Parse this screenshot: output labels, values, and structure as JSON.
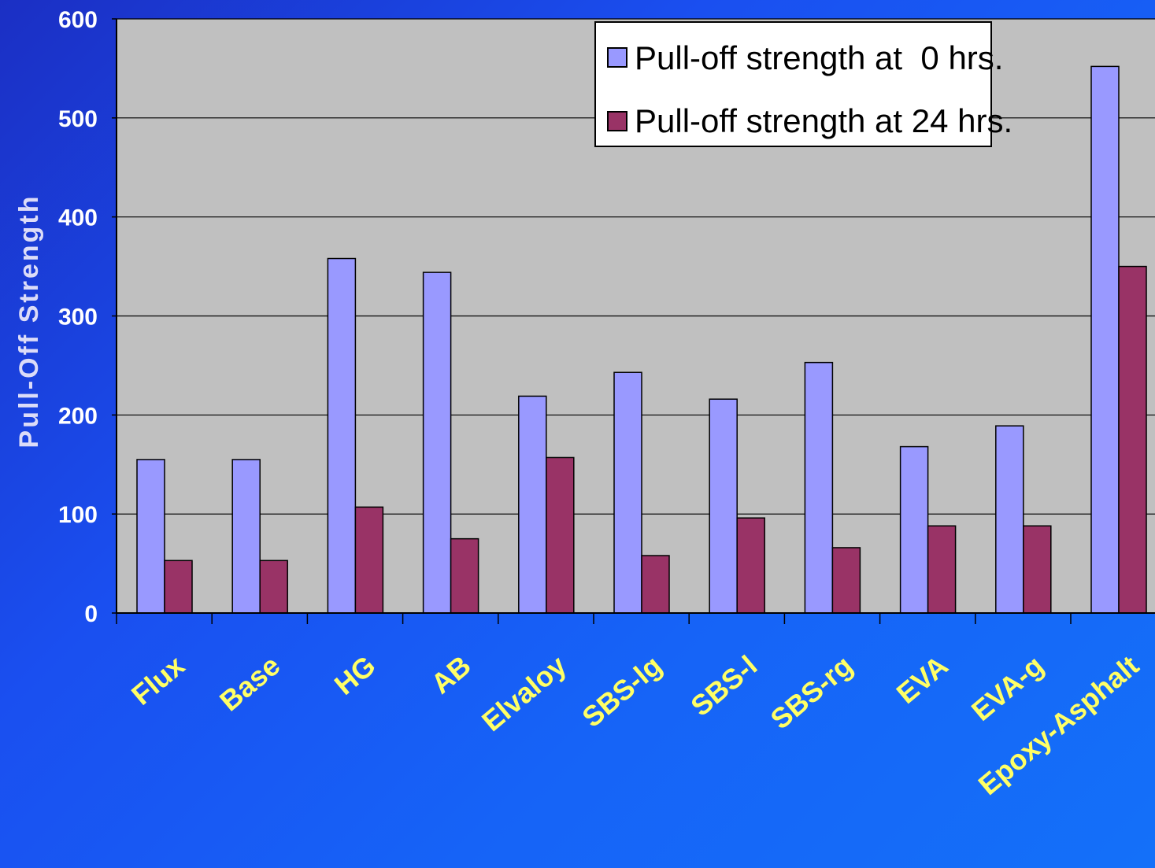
{
  "chart_data": {
    "type": "bar",
    "ylabel": "Pull-Off Strength",
    "ylim": [
      0,
      600
    ],
    "yticks": [
      0,
      100,
      200,
      300,
      400,
      500,
      600
    ],
    "categories": [
      "Flux",
      "Base",
      "HG",
      "AB",
      "Elvaloy",
      "SBS-lg",
      "SBS-l",
      "SBS-rg",
      "EVA",
      "EVA-g",
      "Epoxy-Asphalt"
    ],
    "series": [
      {
        "name": "Pull-off strength at  0 hrs.",
        "color": "#9999ff",
        "values": [
          155,
          155,
          358,
          344,
          219,
          243,
          216,
          253,
          168,
          189,
          552
        ]
      },
      {
        "name": "Pull-off strength at 24 hrs.",
        "color": "#993366",
        "values": [
          53,
          53,
          107,
          75,
          157,
          58,
          96,
          66,
          88,
          88,
          350
        ]
      }
    ],
    "grid": true,
    "legend_position": "top-right",
    "plot_background": "#c0c0c0"
  }
}
